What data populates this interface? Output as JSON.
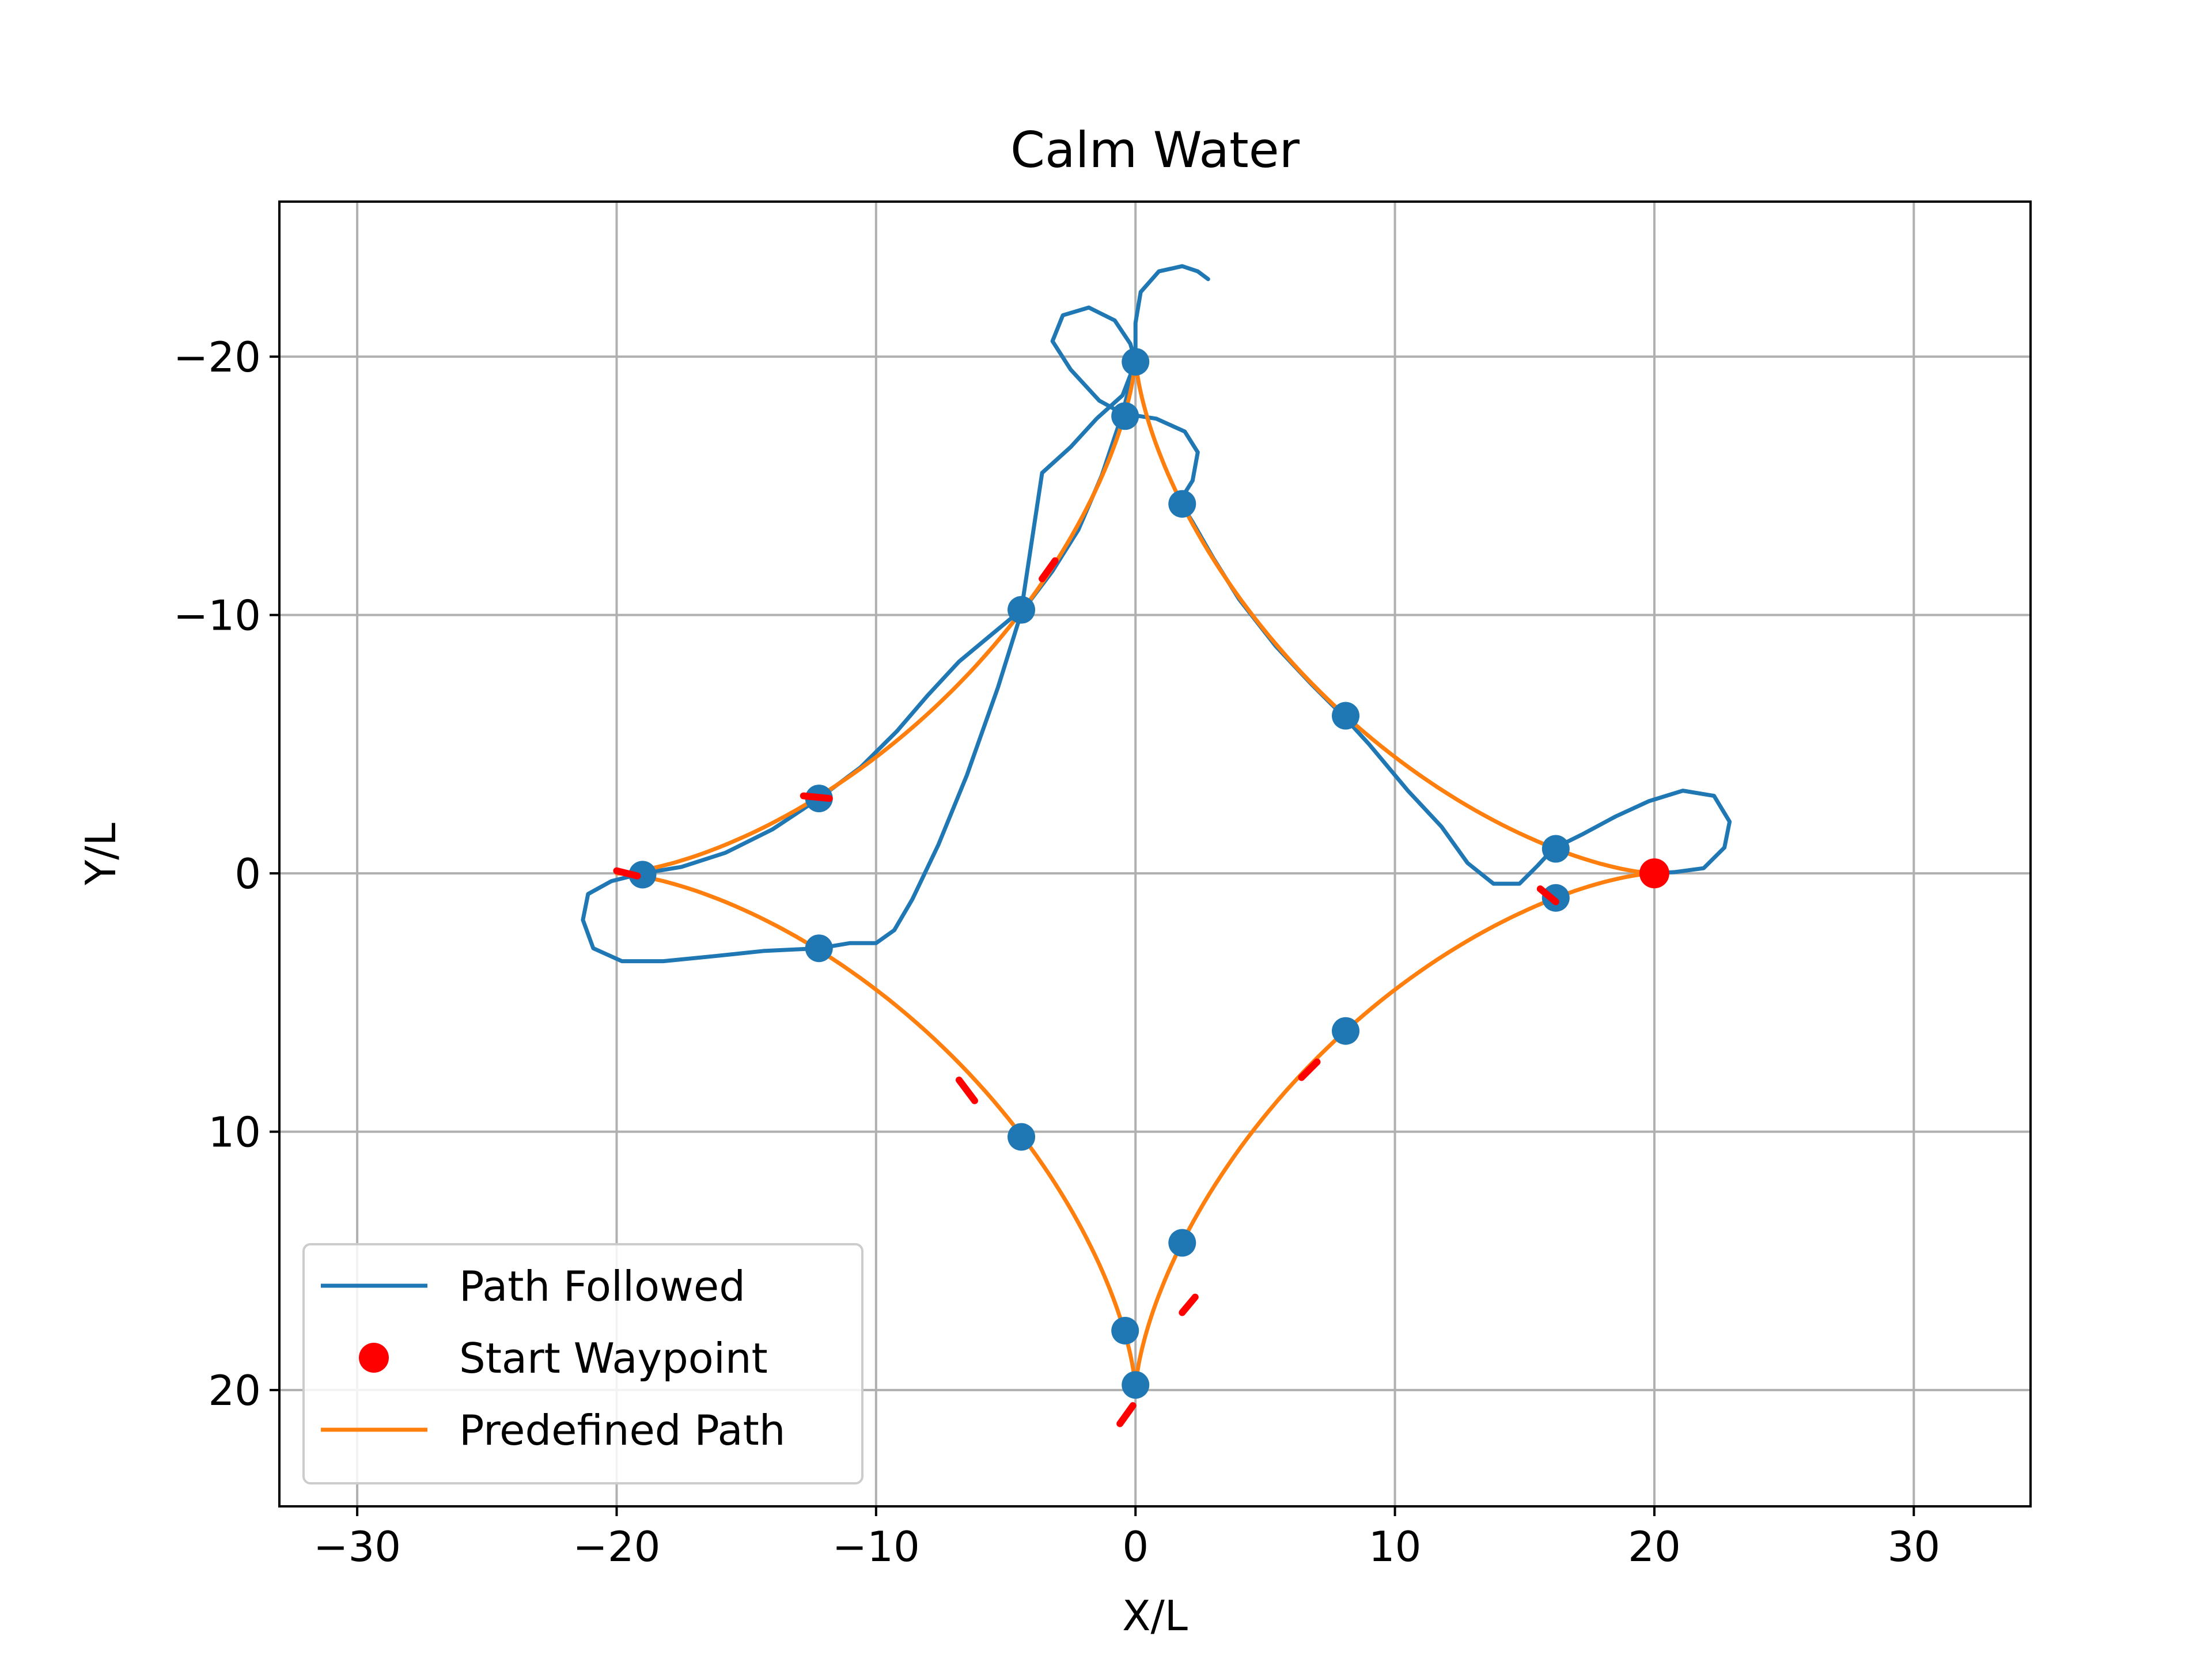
{
  "chart_data": {
    "type": "line",
    "title": "Calm Water",
    "xlabel": "X/L",
    "ylabel": "Y/L",
    "xlim": [
      -33,
      34.5
    ],
    "ylim": [
      24.5,
      -26
    ],
    "y_inverted": true,
    "x_ticks": [
      -30,
      -20,
      -10,
      0,
      10,
      20,
      30
    ],
    "y_ticks": [
      -20,
      -10,
      0,
      10,
      20
    ],
    "x_tick_labels": [
      "−30",
      "−20",
      "−10",
      "0",
      "10",
      "20",
      "30"
    ],
    "y_tick_labels": [
      "−20",
      "−10",
      "0",
      "10",
      "20"
    ],
    "grid": true,
    "legend": {
      "placement": "lower-left",
      "entries": [
        {
          "label": "Path Followed",
          "marker": "line",
          "color": "#1f77b4"
        },
        {
          "label": "Start Waypoint",
          "marker": "dot",
          "color": "#ff0000"
        },
        {
          "label": "Predefined Path",
          "marker": "line",
          "color": "#ff7f0e"
        }
      ]
    },
    "series": [
      {
        "name": "Path Followed",
        "color": "#1f77b4",
        "points": [
          [
            20.0,
            0.0
          ],
          [
            20.8,
            -0.05
          ],
          [
            21.9,
            -0.2
          ],
          [
            22.7,
            -1.0
          ],
          [
            22.9,
            -2.0
          ],
          [
            22.3,
            -3.0
          ],
          [
            21.1,
            -3.2
          ],
          [
            19.8,
            -2.8
          ],
          [
            18.5,
            -2.2
          ],
          [
            17.2,
            -1.5
          ],
          [
            16.1,
            -0.95
          ],
          [
            15.5,
            -0.3
          ],
          [
            14.8,
            0.4
          ],
          [
            13.8,
            0.4
          ],
          [
            12.8,
            -0.4
          ],
          [
            11.8,
            -1.8
          ],
          [
            10.5,
            -3.2
          ],
          [
            9.0,
            -5.0
          ],
          [
            8.0,
            -6.1
          ],
          [
            6.8,
            -7.3
          ],
          [
            5.4,
            -8.8
          ],
          [
            4.0,
            -10.6
          ],
          [
            3.0,
            -12.2
          ],
          [
            2.2,
            -13.6
          ],
          [
            1.7,
            -14.4
          ],
          [
            2.2,
            -15.2
          ],
          [
            2.4,
            -16.3
          ],
          [
            1.9,
            -17.1
          ],
          [
            0.8,
            -17.6
          ],
          [
            -0.5,
            -17.8
          ],
          [
            -1.4,
            -18.3
          ],
          [
            -2.5,
            -19.5
          ],
          [
            -3.2,
            -20.6
          ],
          [
            -2.8,
            -21.6
          ],
          [
            -1.8,
            -21.9
          ],
          [
            -0.8,
            -21.4
          ],
          [
            -0.2,
            -20.5
          ],
          [
            0.0,
            -19.8
          ],
          [
            -0.5,
            -18.5
          ],
          [
            -1.5,
            -17.6
          ],
          [
            -2.5,
            -16.5
          ],
          [
            -3.6,
            -15.5
          ],
          [
            -4.4,
            -10.2
          ],
          [
            -5.6,
            -9.2
          ],
          [
            -6.8,
            -8.2
          ],
          [
            -8.0,
            -6.9
          ],
          [
            -9.2,
            -5.5
          ],
          [
            -10.6,
            -4.1
          ],
          [
            -12.2,
            -2.9
          ],
          [
            -14.0,
            -1.7
          ],
          [
            -15.8,
            -0.8
          ],
          [
            -17.5,
            -0.25
          ],
          [
            -19.0,
            0.0
          ],
          [
            -20.2,
            0.3
          ],
          [
            -21.1,
            0.8
          ],
          [
            -21.3,
            1.8
          ],
          [
            -20.9,
            2.9
          ],
          [
            -19.8,
            3.4
          ],
          [
            -18.2,
            3.4
          ],
          [
            -16.2,
            3.2
          ],
          [
            -14.3,
            3.0
          ],
          [
            -12.2,
            2.9
          ],
          [
            -11.0,
            2.7
          ],
          [
            -10.0,
            2.7
          ],
          [
            -9.3,
            2.2
          ],
          [
            -8.6,
            1.0
          ],
          [
            -7.6,
            -1.1
          ],
          [
            -6.5,
            -3.8
          ],
          [
            -5.3,
            -7.2
          ],
          [
            -4.4,
            -10.1
          ],
          [
            -3.2,
            -11.7
          ],
          [
            -2.2,
            -13.3
          ],
          [
            -1.3,
            -15.4
          ],
          [
            -0.5,
            -17.8
          ],
          [
            0.0,
            -19.8
          ],
          [
            0.0,
            -21.3
          ],
          [
            0.2,
            -22.5
          ],
          [
            0.9,
            -23.3
          ],
          [
            1.8,
            -23.5
          ],
          [
            2.4,
            -23.3
          ],
          [
            2.8,
            -23.0
          ]
        ]
      },
      {
        "name": "Predefined Path",
        "color": "#ff7f0e",
        "curve": "astroid",
        "radius": 20,
        "points": [
          [
            20.0,
            0.0
          ],
          [
            16.2,
            0.95
          ],
          [
            11.5,
            2.9
          ],
          [
            8.1,
            6.1
          ],
          [
            5.3,
            8.8
          ],
          [
            3.2,
            11.6
          ],
          [
            1.7,
            14.4
          ],
          [
            0.7,
            16.9
          ],
          [
            0.1,
            19.0
          ],
          [
            0.0,
            20.0
          ],
          [
            -0.1,
            19.0
          ],
          [
            -0.7,
            16.9
          ],
          [
            -1.7,
            14.4
          ],
          [
            -3.2,
            11.6
          ],
          [
            -4.4,
            10.2
          ],
          [
            -6.8,
            7.3
          ],
          [
            -9.2,
            5.1
          ],
          [
            -12.2,
            2.9
          ],
          [
            -15.8,
            0.8
          ],
          [
            -19.0,
            0.05
          ],
          [
            -20.0,
            0.0
          ],
          [
            -19.0,
            -0.05
          ],
          [
            -15.8,
            -0.8
          ],
          [
            -12.2,
            -2.9
          ],
          [
            -9.2,
            -5.1
          ],
          [
            -6.8,
            -7.3
          ],
          [
            -4.4,
            -10.2
          ],
          [
            -3.2,
            -11.6
          ],
          [
            -1.7,
            -14.4
          ],
          [
            -0.7,
            -16.9
          ],
          [
            -0.1,
            -19.0
          ],
          [
            0.0,
            -20.0
          ],
          [
            0.1,
            -19.0
          ],
          [
            0.7,
            -16.9
          ],
          [
            1.7,
            -14.4
          ],
          [
            3.2,
            -11.6
          ],
          [
            5.3,
            -8.8
          ],
          [
            8.1,
            -6.1
          ],
          [
            11.5,
            -2.9
          ],
          [
            16.2,
            -0.95
          ],
          [
            20.0,
            0.0
          ]
        ]
      }
    ],
    "waypoints": {
      "color": "#1f77b4",
      "points": [
        [
          0.0,
          -19.8
        ],
        [
          -0.4,
          -17.7
        ],
        [
          1.8,
          -14.3
        ],
        [
          -4.4,
          -10.2
        ],
        [
          8.1,
          -6.1
        ],
        [
          -12.2,
          -2.9
        ],
        [
          16.2,
          -0.95
        ],
        [
          -19.0,
          0.05
        ],
        [
          16.2,
          0.95
        ],
        [
          -12.2,
          2.9
        ],
        [
          8.1,
          6.1
        ],
        [
          -4.4,
          10.2
        ],
        [
          1.8,
          14.3
        ],
        [
          -0.4,
          17.7
        ],
        [
          0.0,
          19.8
        ]
      ]
    },
    "start_waypoint": {
      "name": "Start Waypoint",
      "color": "#ff0000",
      "point": [
        20.0,
        0.0
      ]
    },
    "red_markers": {
      "color": "#ff0000",
      "segments": [
        [
          [
            -3.6,
            -11.4
          ],
          [
            -3.1,
            -12.1
          ]
        ],
        [
          [
            -12.8,
            -3.0
          ],
          [
            -11.8,
            -2.9
          ]
        ],
        [
          [
            -20.0,
            -0.1
          ],
          [
            -19.2,
            0.1
          ]
        ],
        [
          [
            -6.8,
            8.0
          ],
          [
            -6.2,
            8.8
          ]
        ],
        [
          [
            -0.6,
            21.3
          ],
          [
            -0.1,
            20.6
          ]
        ],
        [
          [
            1.8,
            17.0
          ],
          [
            2.3,
            16.4
          ]
        ],
        [
          [
            6.4,
            7.9
          ],
          [
            7.0,
            7.3
          ]
        ],
        [
          [
            15.6,
            0.6
          ],
          [
            16.2,
            1.1
          ]
        ]
      ]
    }
  }
}
